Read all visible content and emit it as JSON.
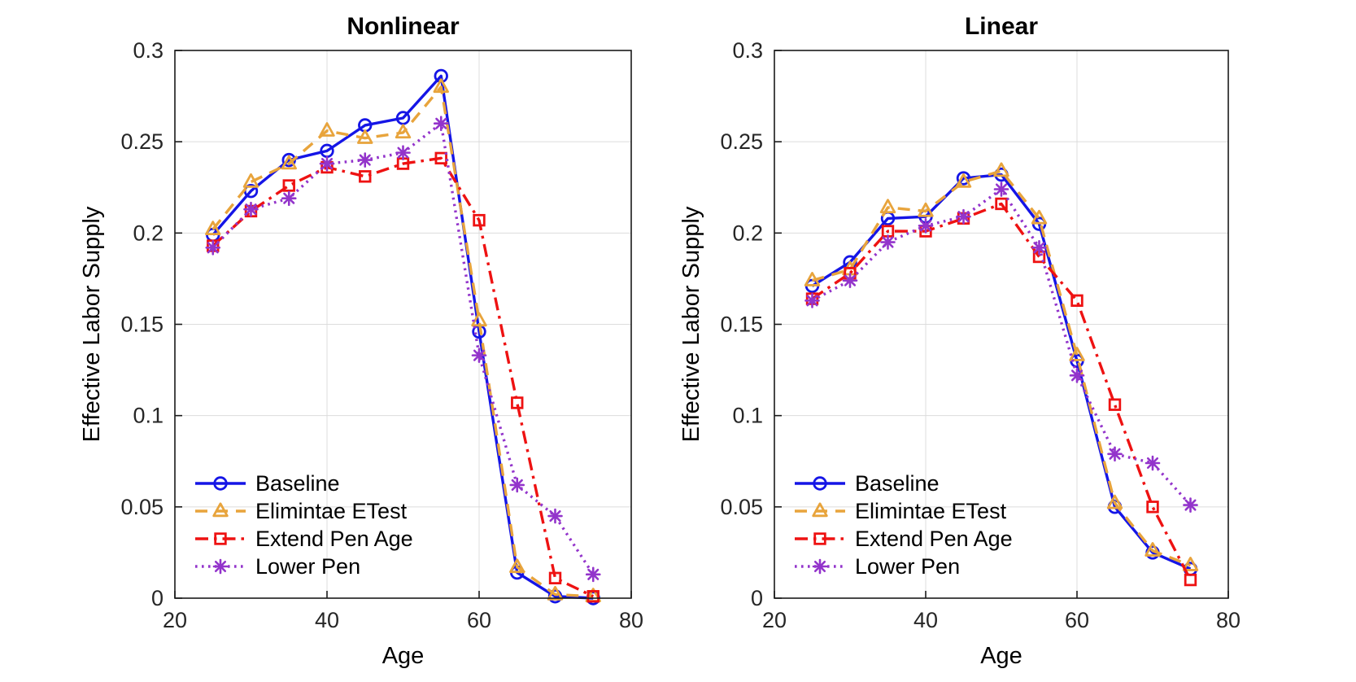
{
  "figure": {
    "background": "#ffffff",
    "text_color": "#262626",
    "title_color": "#000000",
    "grid_color": "#dcdcdc",
    "axis_color": "#1a1a1a"
  },
  "legend": {
    "items": [
      "Baseline",
      "Elimintae ETest",
      "Extend Pen Age",
      "Lower Pen"
    ],
    "position": "lower-left",
    "box": false
  },
  "chart_data": [
    {
      "type": "line",
      "title": "Nonlinear",
      "xlabel": "Age",
      "ylabel": "Effective Labor Supply",
      "xlim": [
        20,
        80
      ],
      "ylim": [
        0,
        0.3
      ],
      "xticks": [
        20,
        40,
        60,
        80
      ],
      "xtick_labels": [
        "20",
        "40",
        "60",
        "80"
      ],
      "yticks": [
        0,
        0.05,
        0.1,
        0.15,
        0.2,
        0.25,
        0.3
      ],
      "ytick_labels": [
        "0",
        "0.05",
        "0.1",
        "0.15",
        "0.2",
        "0.25",
        "0.3"
      ],
      "grid": true,
      "x": [
        25,
        30,
        35,
        40,
        45,
        50,
        55,
        60,
        65,
        70,
        75
      ],
      "series": [
        {
          "name": "Baseline",
          "color": "#1515e6",
          "line": "solid",
          "marker": "circle",
          "values": [
            0.199,
            0.223,
            0.24,
            0.245,
            0.259,
            0.263,
            0.286,
            0.146,
            0.014,
            0.001,
            0.0
          ]
        },
        {
          "name": "Elimintae ETest",
          "color": "#e8a43c",
          "line": "dashed",
          "marker": "triangle",
          "values": [
            0.202,
            0.228,
            0.238,
            0.256,
            0.252,
            0.255,
            0.28,
            0.152,
            0.017,
            0.002,
            0.001
          ]
        },
        {
          "name": "Extend Pen Age",
          "color": "#ee1212",
          "line": "dashdot",
          "marker": "square",
          "values": [
            0.193,
            0.212,
            0.226,
            0.236,
            0.231,
            0.238,
            0.241,
            0.207,
            0.107,
            0.011,
            0.001
          ]
        },
        {
          "name": "Lower Pen",
          "color": "#9334cb",
          "line": "dotted",
          "marker": "asterisk",
          "values": [
            0.192,
            0.213,
            0.219,
            0.238,
            0.24,
            0.244,
            0.26,
            0.133,
            0.062,
            0.045,
            0.013
          ]
        }
      ]
    },
    {
      "type": "line",
      "title": "Linear",
      "xlabel": "Age",
      "ylabel": "Effective Labor Supply",
      "xlim": [
        20,
        80
      ],
      "ylim": [
        0,
        0.3
      ],
      "xticks": [
        20,
        40,
        60,
        80
      ],
      "xtick_labels": [
        "20",
        "40",
        "60",
        "80"
      ],
      "yticks": [
        0,
        0.05,
        0.1,
        0.15,
        0.2,
        0.25,
        0.3
      ],
      "ytick_labels": [
        "0",
        "0.05",
        "0.1",
        "0.15",
        "0.2",
        "0.25",
        "0.3"
      ],
      "grid": true,
      "x": [
        25,
        30,
        35,
        40,
        45,
        50,
        55,
        60,
        65,
        70,
        75
      ],
      "series": [
        {
          "name": "Baseline",
          "color": "#1515e6",
          "line": "solid",
          "marker": "circle",
          "values": [
            0.171,
            0.184,
            0.208,
            0.209,
            0.23,
            0.232,
            0.205,
            0.13,
            0.05,
            0.025,
            0.016
          ]
        },
        {
          "name": "Elimintae ETest",
          "color": "#e8a43c",
          "line": "dashed",
          "marker": "triangle",
          "values": [
            0.174,
            0.18,
            0.214,
            0.212,
            0.228,
            0.234,
            0.208,
            0.133,
            0.052,
            0.026,
            0.018
          ]
        },
        {
          "name": "Extend Pen Age",
          "color": "#ee1212",
          "line": "dashdot",
          "marker": "square",
          "values": [
            0.164,
            0.178,
            0.201,
            0.201,
            0.208,
            0.216,
            0.187,
            0.163,
            0.106,
            0.05,
            0.01
          ]
        },
        {
          "name": "Lower Pen",
          "color": "#9334cb",
          "line": "dotted",
          "marker": "asterisk",
          "values": [
            0.163,
            0.174,
            0.195,
            0.204,
            0.209,
            0.224,
            0.192,
            0.122,
            0.079,
            0.074,
            0.051
          ]
        }
      ]
    }
  ]
}
